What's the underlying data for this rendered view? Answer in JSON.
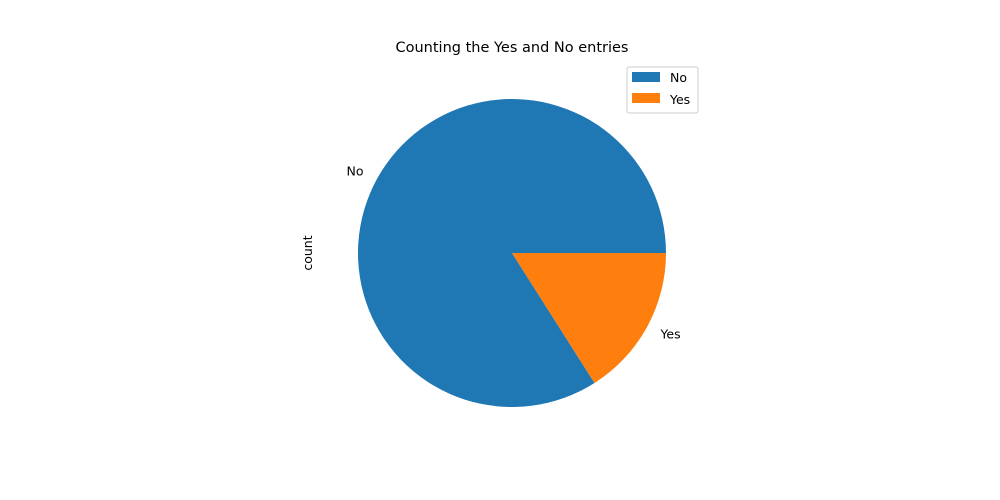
{
  "chart_data": {
    "type": "pie",
    "title": "Counting the Yes and No entries",
    "ylabel": "count",
    "slices": [
      {
        "label": "No",
        "value": 84,
        "color": "#1f77b4"
      },
      {
        "label": "Yes",
        "value": 16,
        "color": "#ff7f0e"
      }
    ],
    "start_angle_deg": 0,
    "direction": "counterclockwise",
    "legend": {
      "placement": "top-right",
      "entries": [
        "No",
        "Yes"
      ]
    }
  }
}
